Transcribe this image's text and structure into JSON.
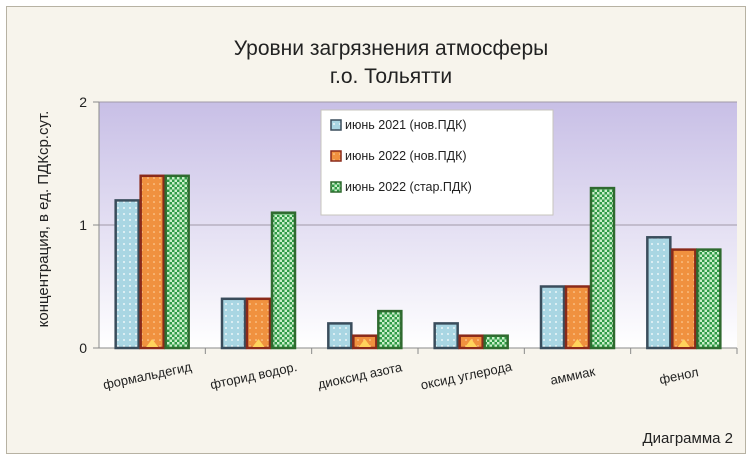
{
  "chart_data": {
    "type": "bar",
    "title_lines": [
      "Уровни загрязнения атмосферы",
      "г.о. Тольятти"
    ],
    "ylabel": "концентрация, в ед. ПДКср.сут.",
    "xlabel": "",
    "ylim": [
      0,
      2
    ],
    "yticks": [
      "0",
      "1",
      "2"
    ],
    "grid": true,
    "legend_position": "top-right-inside",
    "categories": [
      "формальдегид",
      "фторид водор.",
      "диоксид азота",
      "оксид углерода",
      "аммиак",
      "фенол"
    ],
    "series": [
      {
        "name": "июнь 2021 (нов.ПДК)",
        "values": [
          1.2,
          0.4,
          0.2,
          0.2,
          0.5,
          0.9
        ],
        "color": "#a9d6e3",
        "border": "#3a4d5c"
      },
      {
        "name": "июнь 2022 (нов.ПДК)",
        "values": [
          1.4,
          0.4,
          0.1,
          0.1,
          0.5,
          0.8
        ],
        "color": "#f0913f",
        "border": "#8a2a1a"
      },
      {
        "name": "июнь 2022 (стар.ПДК)",
        "values": [
          1.4,
          1.1,
          0.3,
          0.1,
          1.3,
          0.8
        ],
        "color": "#6fbf7a",
        "border": "#2f6a2f"
      }
    ],
    "caption": "Диаграмма 2"
  }
}
